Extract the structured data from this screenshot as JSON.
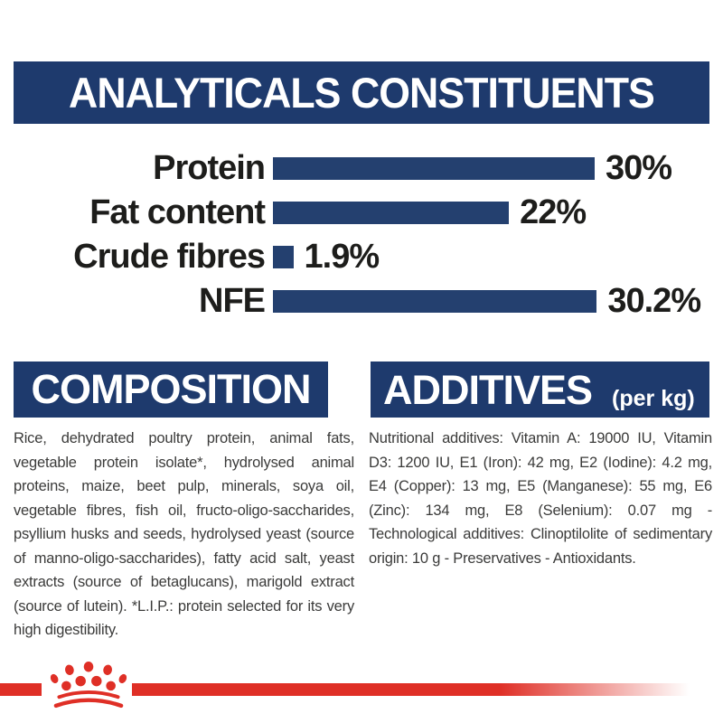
{
  "header": {
    "title": "ANALYTICALS CONSTITUENTS"
  },
  "chart_data": {
    "type": "bar",
    "orientation": "horizontal",
    "categories": [
      "Protein",
      "Fat content",
      "Crude fibres",
      "NFE"
    ],
    "values": [
      30,
      22,
      1.9,
      30.2
    ],
    "value_labels": [
      "30%",
      "22%",
      "1.9%",
      "30.2%"
    ],
    "unit": "percent",
    "axis_labels_visible": false,
    "grid": false,
    "legend": "none",
    "bar_color": "#24406f",
    "xlim": [
      0,
      32
    ]
  },
  "composition": {
    "title": "COMPOSITION",
    "text": "Rice, dehydrated poultry protein, animal fats, vegetable protein isolate*, hydrolysed animal proteins, maize, beet pulp, minerals, soya oil, vegetable fibres, fish oil, fructo-oligo-saccharides, psyllium husks and seeds, hydrolysed yeast (source of manno-oligo-saccharides), fatty acid salt, yeast extracts (source of betaglucans), marigold extract (source of lutein). *L.I.P.: protein selected for its very high digestibility."
  },
  "additives": {
    "title": "ADDITIVES",
    "unit_label": "(per kg)",
    "text": "Nutritional additives: Vitamin A: 19000 IU, Vitamin D3: 1200 IU, E1 (Iron): 42 mg, E2 (Iodine): 4.2 mg, E4 (Copper): 13 mg, E5 (Manganese): 55 mg, E6 (Zinc): 134 mg, E8 (Selenium): 0.07 mg - Technological additives: Clinoptilolite of sedimentary origin: 10 g - Preservatives - Antioxidants."
  },
  "footer": {
    "logo": "royal-canin-crown-logo"
  },
  "colors": {
    "navy": "#1e3a6d",
    "bar_navy": "#24406f",
    "ink": "#1d1d1b",
    "body_gray": "#3b3b3a",
    "brand_red": "#df2f26"
  }
}
